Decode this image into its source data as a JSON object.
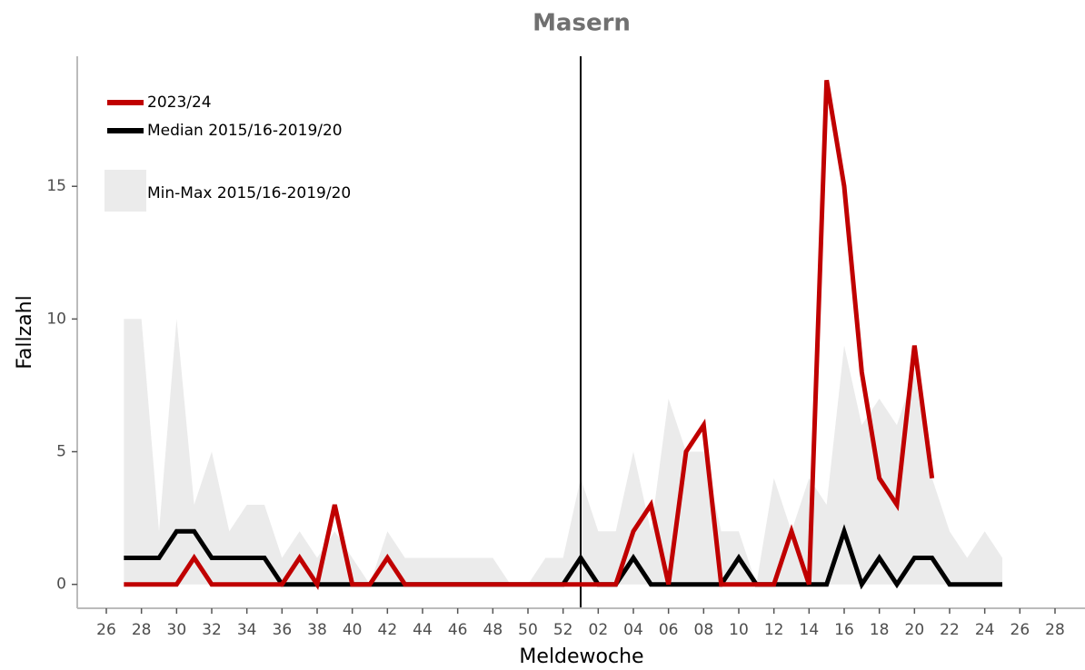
{
  "chart_data": {
    "type": "line",
    "title": "Masern",
    "x_label": "Meldewoche",
    "y_label": "Fallzahl",
    "categories": [
      "26",
      null,
      "28",
      null,
      "30",
      null,
      "32",
      null,
      "34",
      null,
      "36",
      null,
      "38",
      null,
      "40",
      null,
      "42",
      null,
      "44",
      null,
      "46",
      null,
      "48",
      null,
      "50",
      null,
      "52",
      null,
      "02",
      null,
      "04",
      null,
      "06",
      null,
      "08",
      null,
      "10",
      null,
      "12",
      null,
      "14",
      null,
      "16",
      null,
      "18",
      null,
      "20",
      null,
      "22",
      null,
      "24",
      null,
      "26",
      null,
      "28"
    ],
    "ylim": [
      -0.9,
      19.9
    ],
    "yticks": [
      0,
      5,
      10,
      15
    ],
    "legend": "top-left",
    "series": [
      {
        "name": "Min-Max 2015/16-2019/20",
        "type": "area",
        "color": "#ebebeb",
        "values": [
          null,
          10,
          10,
          2,
          10,
          3,
          5,
          2,
          3,
          3,
          1,
          2,
          1,
          2,
          1,
          0,
          2,
          1,
          1,
          1,
          1,
          1,
          1,
          0,
          0,
          1,
          1,
          4,
          2,
          2,
          5,
          2,
          7,
          5,
          5,
          2,
          2,
          0,
          4,
          2,
          4,
          3,
          9,
          6,
          7,
          6,
          8,
          4,
          2,
          1,
          2,
          1,
          null,
          null,
          null
        ]
      },
      {
        "name": "2023/24",
        "type": "line",
        "color": "#c00000",
        "values": [
          null,
          0,
          0,
          0,
          0,
          1,
          0,
          0,
          0,
          0,
          0,
          1,
          0,
          3,
          0,
          0,
          1,
          0,
          0,
          0,
          0,
          0,
          0,
          0,
          0,
          0,
          0,
          0,
          0,
          0,
          2,
          3,
          0,
          5,
          6,
          0,
          0,
          0,
          0,
          2,
          0,
          19,
          15,
          8,
          4,
          3,
          9,
          4,
          null,
          null,
          null,
          null,
          null,
          null,
          null
        ]
      },
      {
        "name": "Median 2015/16-2019/20",
        "type": "line",
        "color": "#000000",
        "values": [
          null,
          1,
          1,
          1,
          2,
          2,
          1,
          1,
          1,
          1,
          0,
          0,
          0,
          0,
          0,
          0,
          0,
          0,
          0,
          0,
          0,
          0,
          0,
          0,
          0,
          0,
          0,
          1,
          0,
          0,
          1,
          0,
          0,
          0,
          0,
          0,
          1,
          0,
          0,
          0,
          0,
          0,
          2,
          0,
          1,
          0,
          1,
          1,
          0,
          0,
          0,
          0,
          null,
          null,
          null
        ]
      }
    ]
  }
}
